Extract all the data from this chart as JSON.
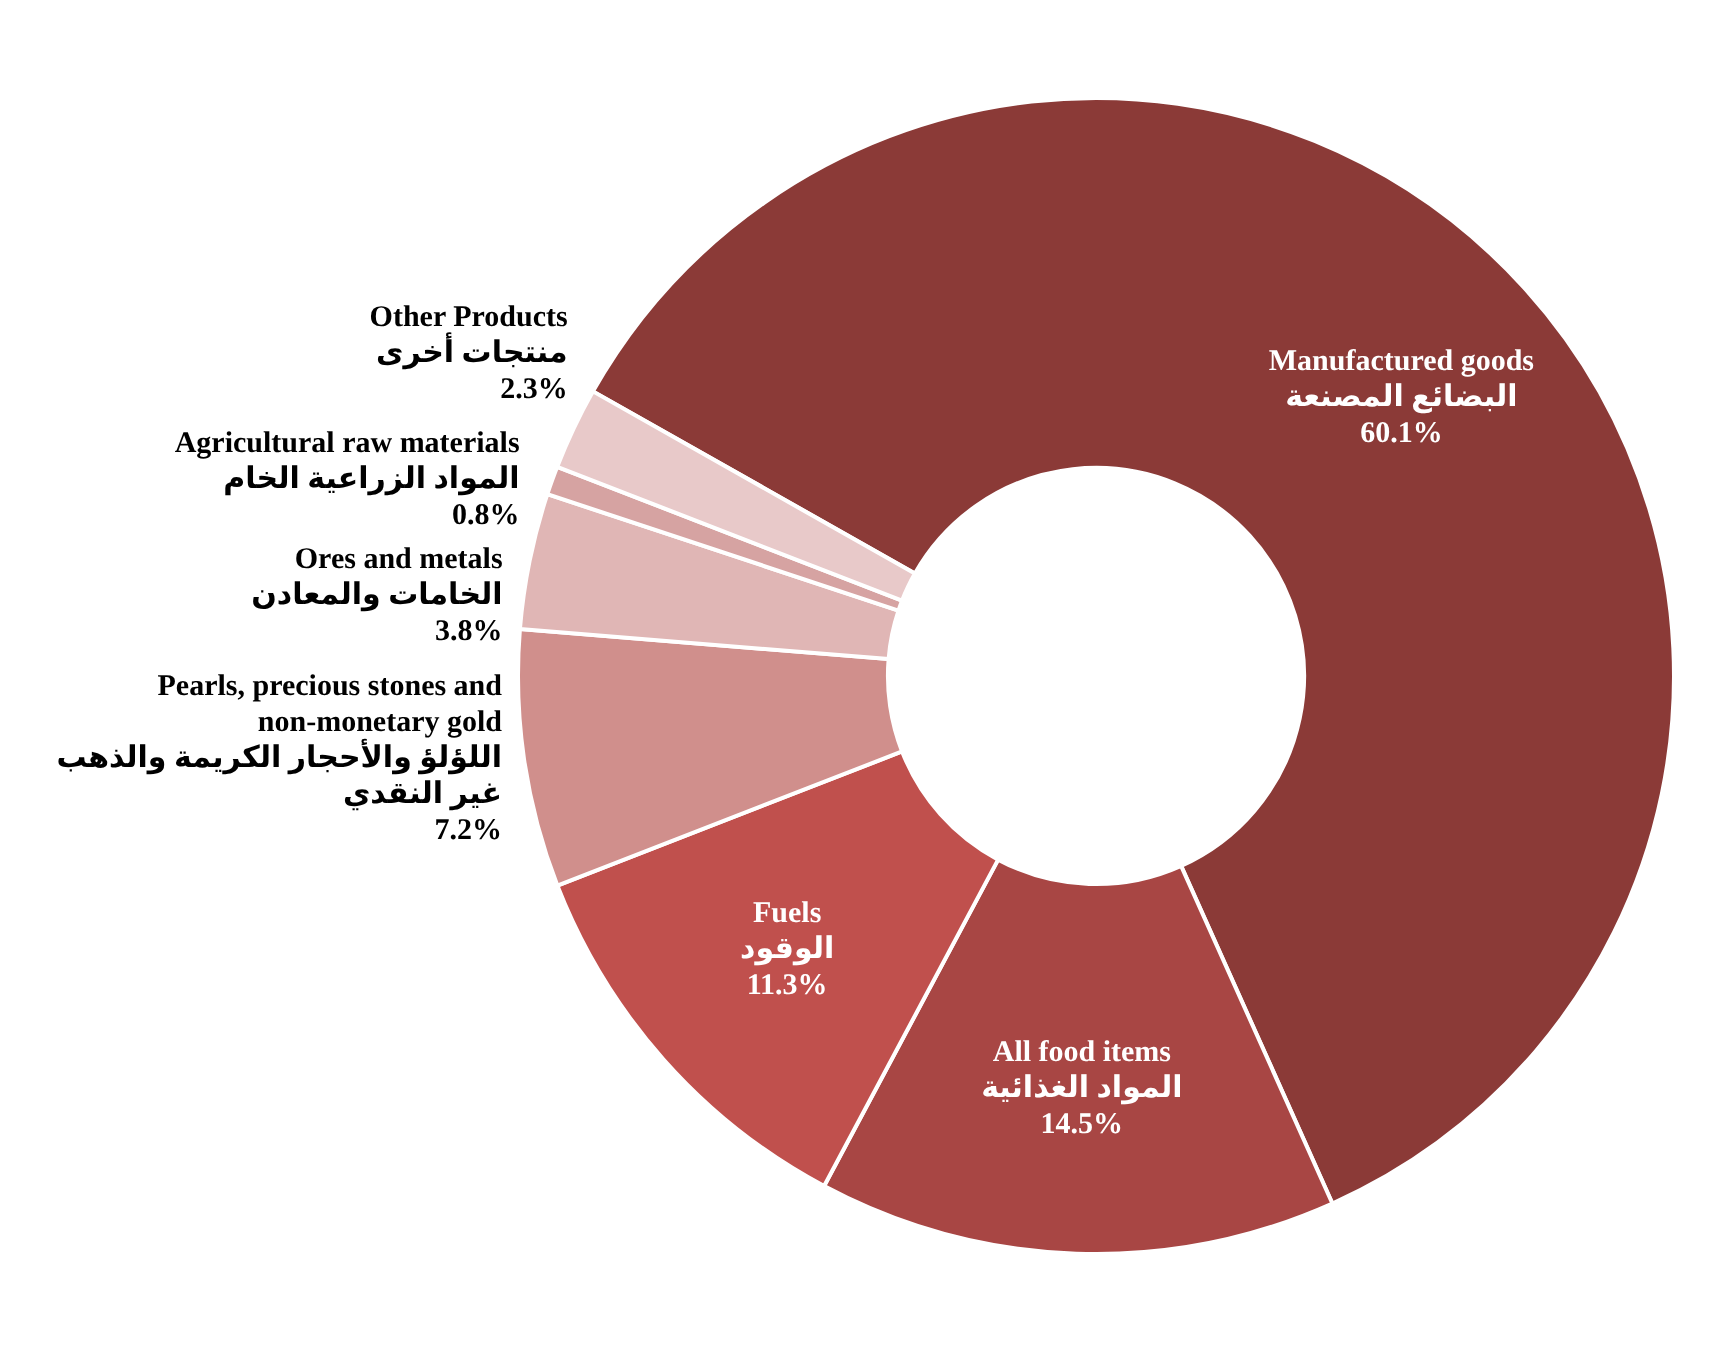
{
  "chart_data": {
    "type": "donut",
    "categories": [
      "Manufactured goods\nالبضائع المصنعة",
      "All food items\nالمواد الغذائية",
      "Fuels\nالوقود",
      "Pearls, precious stones and non-monetary gold\nاللؤلؤ والأحجار الكريمة والذهب  غير النقدي",
      "Ores and metals\nالخامات والمعادن",
      "Agricultural raw materials\nالمواد الزراعية الخام",
      "Other Products\nمنتجات أخرى"
    ],
    "values": [
      60.1,
      14.5,
      11.3,
      7.2,
      3.8,
      0.8,
      2.3
    ],
    "value_labels": [
      "60.1%",
      "14.5%",
      "11.3%",
      "7.2%",
      "3.8%",
      "0.8%",
      "2.3%"
    ],
    "colors": [
      "#8b3a37",
      "#a84644",
      "#c0504d",
      "#d08f8c",
      "#e0b6b5",
      "#d6a3a2",
      "#e8c9c9"
    ],
    "legend": false
  }
}
